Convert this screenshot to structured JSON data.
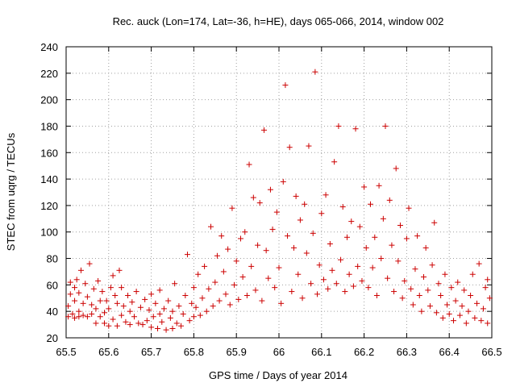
{
  "chart_data": {
    "type": "scatter",
    "title": "Rec. auck (Lon=174, Lat=-36, h=HE), days 065-066, 2014, window 002",
    "xlabel": "GPS time / Days of year 2014",
    "ylabel": "STEC from uqrg / TECUs",
    "xlim": [
      65.5,
      66.5
    ],
    "ylim": [
      20,
      240
    ],
    "xticks": [
      65.5,
      65.6,
      65.7,
      65.8,
      65.9,
      66.0,
      66.1,
      66.2,
      66.3,
      66.4,
      66.5
    ],
    "xtick_labels": [
      "65.5",
      "65.6",
      "65.7",
      "65.8",
      "65.9",
      "66",
      "66.1",
      "66.2",
      "66.3",
      "66.4",
      "66.5"
    ],
    "yticks": [
      20,
      40,
      60,
      80,
      100,
      120,
      140,
      160,
      180,
      200,
      220,
      240
    ],
    "ytick_labels": [
      "20",
      "40",
      "60",
      "80",
      "100",
      "120",
      "140",
      "160",
      "180",
      "200",
      "220",
      "240"
    ],
    "grid": true,
    "marker": "+",
    "color": "#cc0000",
    "points": [
      [
        65.505,
        36
      ],
      [
        65.505,
        44
      ],
      [
        65.51,
        53
      ],
      [
        65.51,
        62
      ],
      [
        65.515,
        38
      ],
      [
        65.52,
        35
      ],
      [
        65.52,
        48
      ],
      [
        65.52,
        58
      ],
      [
        65.525,
        64
      ],
      [
        65.53,
        36
      ],
      [
        65.53,
        40
      ],
      [
        65.53,
        54
      ],
      [
        65.535,
        71
      ],
      [
        65.54,
        37
      ],
      [
        65.54,
        46
      ],
      [
        65.545,
        61
      ],
      [
        65.55,
        36
      ],
      [
        65.55,
        51
      ],
      [
        65.555,
        76
      ],
      [
        65.56,
        38
      ],
      [
        65.56,
        45
      ],
      [
        65.565,
        57
      ],
      [
        65.57,
        31
      ],
      [
        65.57,
        42
      ],
      [
        65.575,
        63
      ],
      [
        65.58,
        36
      ],
      [
        65.58,
        48
      ],
      [
        65.585,
        55
      ],
      [
        65.59,
        31
      ],
      [
        65.59,
        39
      ],
      [
        65.595,
        48
      ],
      [
        65.6,
        29
      ],
      [
        65.6,
        42
      ],
      [
        65.605,
        58
      ],
      [
        65.61,
        34
      ],
      [
        65.61,
        67
      ],
      [
        65.615,
        52
      ],
      [
        65.62,
        29
      ],
      [
        65.62,
        46
      ],
      [
        65.625,
        71
      ],
      [
        65.63,
        37
      ],
      [
        65.63,
        58
      ],
      [
        65.635,
        44
      ],
      [
        65.64,
        32
      ],
      [
        65.645,
        52
      ],
      [
        65.65,
        30
      ],
      [
        65.65,
        40
      ],
      [
        65.655,
        47
      ],
      [
        65.66,
        36
      ],
      [
        65.665,
        55
      ],
      [
        65.67,
        31
      ],
      [
        65.675,
        43
      ],
      [
        65.68,
        30
      ],
      [
        65.685,
        49
      ],
      [
        65.69,
        33
      ],
      [
        65.695,
        41
      ],
      [
        65.7,
        28
      ],
      [
        65.7,
        53
      ],
      [
        65.705,
        36
      ],
      [
        65.71,
        46
      ],
      [
        65.715,
        27
      ],
      [
        65.72,
        38
      ],
      [
        65.72,
        56
      ],
      [
        65.725,
        32
      ],
      [
        65.73,
        42
      ],
      [
        65.735,
        26
      ],
      [
        65.74,
        48
      ],
      [
        65.745,
        35
      ],
      [
        65.75,
        27
      ],
      [
        65.75,
        40
      ],
      [
        65.755,
        61
      ],
      [
        65.76,
        31
      ],
      [
        65.765,
        44
      ],
      [
        65.77,
        29
      ],
      [
        65.775,
        38
      ],
      [
        65.78,
        52
      ],
      [
        65.785,
        83
      ],
      [
        65.79,
        33
      ],
      [
        65.795,
        46
      ],
      [
        65.8,
        36
      ],
      [
        65.8,
        58
      ],
      [
        65.805,
        43
      ],
      [
        65.81,
        68
      ],
      [
        65.815,
        37
      ],
      [
        65.82,
        50
      ],
      [
        65.825,
        74
      ],
      [
        65.83,
        40
      ],
      [
        65.835,
        57
      ],
      [
        65.84,
        104
      ],
      [
        65.845,
        44
      ],
      [
        65.85,
        62
      ],
      [
        65.855,
        82
      ],
      [
        65.86,
        48
      ],
      [
        65.865,
        97
      ],
      [
        65.87,
        70
      ],
      [
        65.875,
        53
      ],
      [
        65.88,
        87
      ],
      [
        65.885,
        45
      ],
      [
        65.89,
        118
      ],
      [
        65.895,
        60
      ],
      [
        65.9,
        78
      ],
      [
        65.905,
        49
      ],
      [
        65.91,
        95
      ],
      [
        65.915,
        66
      ],
      [
        65.92,
        100
      ],
      [
        65.925,
        52
      ],
      [
        65.93,
        151
      ],
      [
        65.935,
        74
      ],
      [
        65.94,
        126
      ],
      [
        65.945,
        56
      ],
      [
        65.95,
        90
      ],
      [
        65.955,
        122
      ],
      [
        65.96,
        48
      ],
      [
        65.965,
        177
      ],
      [
        65.97,
        86
      ],
      [
        65.975,
        65
      ],
      [
        65.98,
        132
      ],
      [
        65.985,
        102
      ],
      [
        65.99,
        58
      ],
      [
        65.995,
        115
      ],
      [
        66.0,
        73
      ],
      [
        66.005,
        46
      ],
      [
        66.01,
        138
      ],
      [
        66.015,
        211
      ],
      [
        66.02,
        97
      ],
      [
        66.025,
        164
      ],
      [
        66.03,
        55
      ],
      [
        66.035,
        88
      ],
      [
        66.04,
        127
      ],
      [
        66.045,
        68
      ],
      [
        66.05,
        109
      ],
      [
        66.055,
        50
      ],
      [
        66.06,
        121
      ],
      [
        66.065,
        84
      ],
      [
        66.07,
        165
      ],
      [
        66.075,
        61
      ],
      [
        66.08,
        99
      ],
      [
        66.085,
        221
      ],
      [
        66.09,
        53
      ],
      [
        66.095,
        75
      ],
      [
        66.1,
        114
      ],
      [
        66.105,
        64
      ],
      [
        66.11,
        128
      ],
      [
        66.115,
        57
      ],
      [
        66.12,
        91
      ],
      [
        66.125,
        71
      ],
      [
        66.13,
        153
      ],
      [
        66.135,
        61
      ],
      [
        66.14,
        180
      ],
      [
        66.145,
        79
      ],
      [
        66.15,
        119
      ],
      [
        66.155,
        55
      ],
      [
        66.16,
        96
      ],
      [
        66.165,
        68
      ],
      [
        66.17,
        108
      ],
      [
        66.175,
        59
      ],
      [
        66.18,
        178
      ],
      [
        66.185,
        74
      ],
      [
        66.19,
        104
      ],
      [
        66.195,
        63
      ],
      [
        66.2,
        134
      ],
      [
        66.205,
        88
      ],
      [
        66.21,
        58
      ],
      [
        66.215,
        121
      ],
      [
        66.22,
        73
      ],
      [
        66.225,
        96
      ],
      [
        66.23,
        52
      ],
      [
        66.235,
        135
      ],
      [
        66.24,
        80
      ],
      [
        66.245,
        110
      ],
      [
        66.25,
        180
      ],
      [
        66.255,
        65
      ],
      [
        66.26,
        124
      ],
      [
        66.265,
        90
      ],
      [
        66.27,
        55
      ],
      [
        66.275,
        148
      ],
      [
        66.28,
        78
      ],
      [
        66.285,
        105
      ],
      [
        66.29,
        50
      ],
      [
        66.295,
        63
      ],
      [
        66.3,
        95
      ],
      [
        66.305,
        118
      ],
      [
        66.31,
        57
      ],
      [
        66.315,
        45
      ],
      [
        66.32,
        72
      ],
      [
        66.325,
        97
      ],
      [
        66.33,
        52
      ],
      [
        66.335,
        40
      ],
      [
        66.34,
        66
      ],
      [
        66.345,
        88
      ],
      [
        66.35,
        56
      ],
      [
        66.355,
        44
      ],
      [
        66.36,
        75
      ],
      [
        66.365,
        107
      ],
      [
        66.37,
        39
      ],
      [
        66.375,
        61
      ],
      [
        66.38,
        52
      ],
      [
        66.385,
        35
      ],
      [
        66.39,
        68
      ],
      [
        66.395,
        45
      ],
      [
        66.4,
        38
      ],
      [
        66.405,
        58
      ],
      [
        66.41,
        33
      ],
      [
        66.415,
        48
      ],
      [
        66.42,
        62
      ],
      [
        66.425,
        37
      ],
      [
        66.43,
        44
      ],
      [
        66.435,
        56
      ],
      [
        66.44,
        31
      ],
      [
        66.445,
        40
      ],
      [
        66.45,
        52
      ],
      [
        66.455,
        68
      ],
      [
        66.46,
        35
      ],
      [
        66.465,
        46
      ],
      [
        66.47,
        76
      ],
      [
        66.475,
        33
      ],
      [
        66.48,
        42
      ],
      [
        66.485,
        58
      ],
      [
        66.49,
        31
      ],
      [
        66.49,
        64
      ],
      [
        66.495,
        50
      ]
    ]
  }
}
